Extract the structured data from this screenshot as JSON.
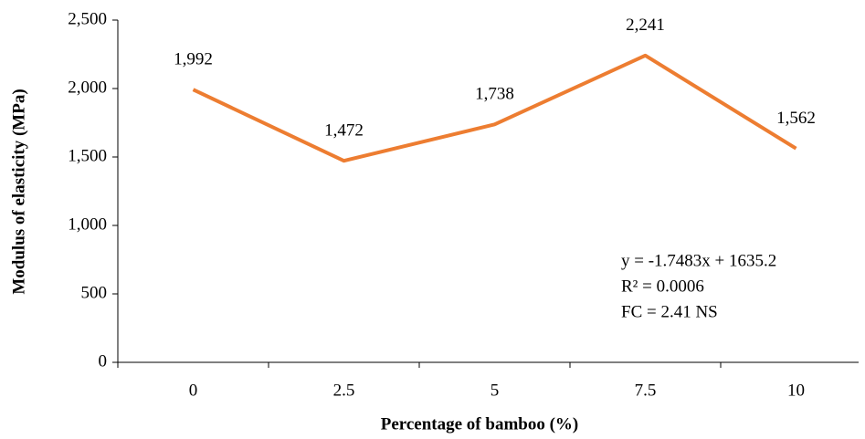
{
  "chart_data": {
    "type": "line",
    "y_label": "Modulus of elasticity (MPa)",
    "x_label": "Percentage of bamboo (%)",
    "categories": [
      "0",
      "2.5",
      "5",
      "7.5",
      "10"
    ],
    "values": [
      1992,
      1472,
      1738,
      2241,
      1562
    ],
    "value_labels": [
      "1,992",
      "1,472",
      "1,738",
      "2,241",
      "1,562"
    ],
    "color": "#ed7d31",
    "ylim": [
      0,
      2500
    ],
    "yticks": [
      0,
      500,
      {
        "value": 1000,
        "label": "1,000"
      },
      {
        "value": 1500,
        "label": "1,500"
      },
      {
        "value": 2000,
        "label": "2,000"
      },
      {
        "value": 2500,
        "label": "2,500"
      }
    ],
    "annotations": [
      "y = -1.7483x + 1635.2",
      "R² = 0.0006",
      "FC = 2.41 NS"
    ]
  }
}
